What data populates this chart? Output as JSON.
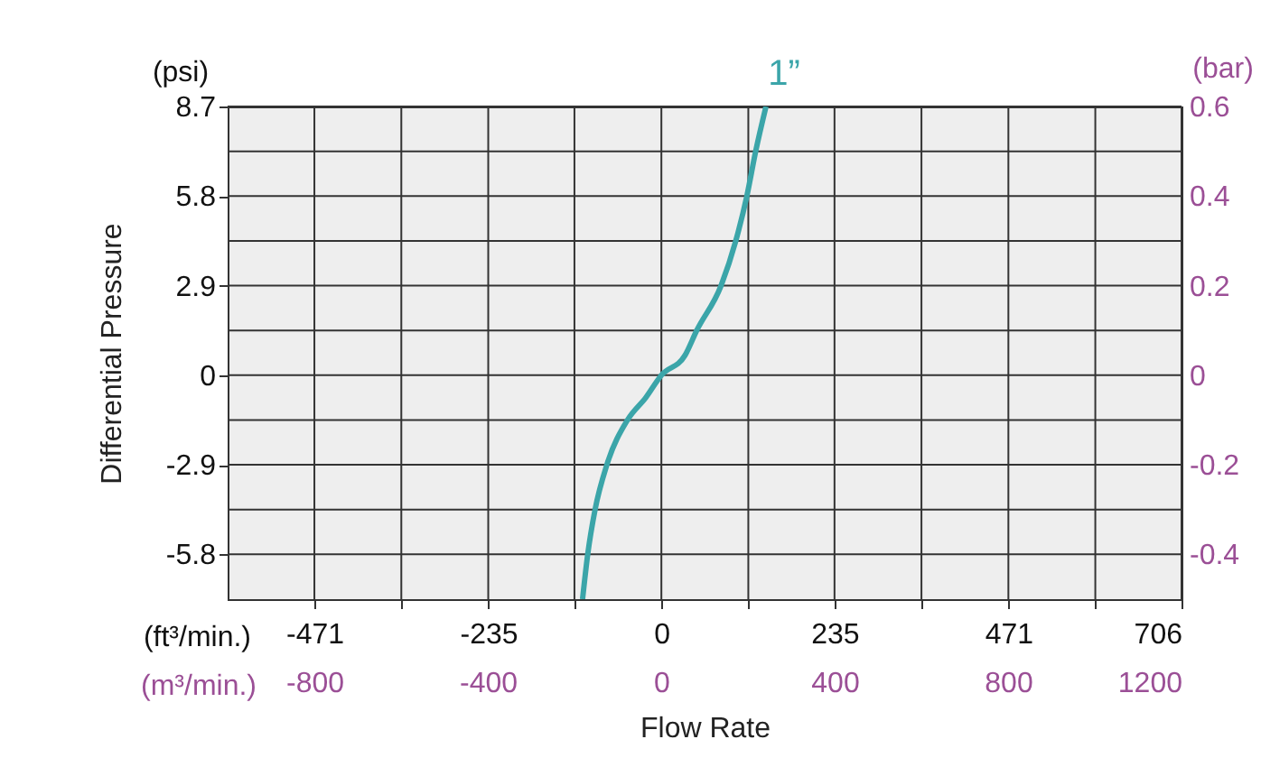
{
  "chart_data": {
    "type": "line",
    "xlabel": "Flow Rate",
    "ylabel": "Differential Pressure",
    "y2label": "(bar)",
    "x2label": "(m³/min.)",
    "annotations": [
      "(psi)",
      "(ft³/min.)"
    ],
    "x": [
      -107,
      -100,
      -90,
      -74,
      -46,
      -21,
      0,
      32,
      48,
      81,
      101,
      116,
      128,
      142
    ],
    "series": [
      {
        "name": "1”",
        "color": "#3ba5a9",
        "values": [
          -7.25,
          -5.8,
          -4.35,
          -2.9,
          -1.45,
          -0.72,
          0,
          0.64,
          1.45,
          2.9,
          4.35,
          5.8,
          7.25,
          8.7
        ]
      }
    ],
    "xlim": [
      -588.75,
      706
    ],
    "xticks": [
      -471,
      {
        "value": -353,
        "label": null
      },
      -235,
      {
        "value": -118,
        "label": null
      },
      0,
      {
        "value": 118,
        "label": null
      },
      235,
      {
        "value": 353,
        "label": null
      },
      471,
      {
        "value": 589,
        "label": null
      },
      706
    ],
    "x2lim": [
      -1000,
      1200
    ],
    "x2ticks": [
      -800,
      -400,
      0,
      400,
      800,
      1200
    ],
    "ylim": [
      -7.25,
      8.7
    ],
    "yticks": [
      -5.8,
      {
        "value": -4.35,
        "label": null
      },
      -2.9,
      {
        "value": -1.45,
        "label": null
      },
      0,
      {
        "value": 1.45,
        "label": null
      },
      2.9,
      {
        "value": 4.35,
        "label": null
      },
      5.8,
      {
        "value": 7.25,
        "label": null
      },
      8.7
    ],
    "y2lim": [
      -0.5,
      0.6
    ],
    "y2ticks": [
      -0.4,
      -0.2,
      0,
      0.2,
      0.4,
      0.6
    ],
    "grid": true,
    "legend": false,
    "marker": "none",
    "line_style": "solid"
  }
}
